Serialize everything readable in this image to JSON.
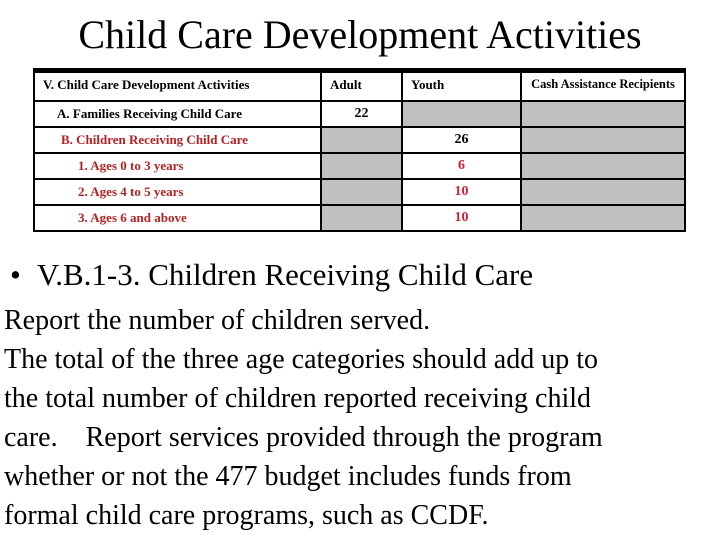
{
  "slide": {
    "title": "Child Care Development Activities",
    "bullet_marker": "•",
    "bullet_text": "V.B.1-3. Children Receiving Child Care",
    "paragraph1": "Report the number of children served.",
    "paragraph2": "The total of the three age categories should add up to\nthe total number of children reported receiving child\ncare.    Report services provided through the program\nwhether or not the 477 budget includes funds from\nformal child care programs, such as CCDF."
  },
  "table": {
    "columns": [
      "V. Child Care Development Activities",
      "Adult",
      "Youth",
      "Cash Assistance Recipients"
    ],
    "rows": [
      {
        "label": "A. Families Receiving Child Care",
        "adult": "22",
        "youth": "",
        "cash": ""
      },
      {
        "label": "B. Children Receiving Child Care",
        "adult": "",
        "youth": "26",
        "cash": ""
      },
      {
        "label": "1. Ages 0 to 3 years",
        "adult": "",
        "youth": "6",
        "cash": ""
      },
      {
        "label": "2. Ages 4 to 5 years",
        "adult": "",
        "youth": "10",
        "cash": ""
      },
      {
        "label": "3. Ages 6 and above",
        "adult": "",
        "youth": "10",
        "cash": ""
      }
    ]
  },
  "colors": {
    "shaded_cell": "#C0C0C0",
    "label_red": "#B22222",
    "value_red": "#CC2233",
    "border": "#000000",
    "background": "#FFFFFF",
    "text": "#000000"
  }
}
